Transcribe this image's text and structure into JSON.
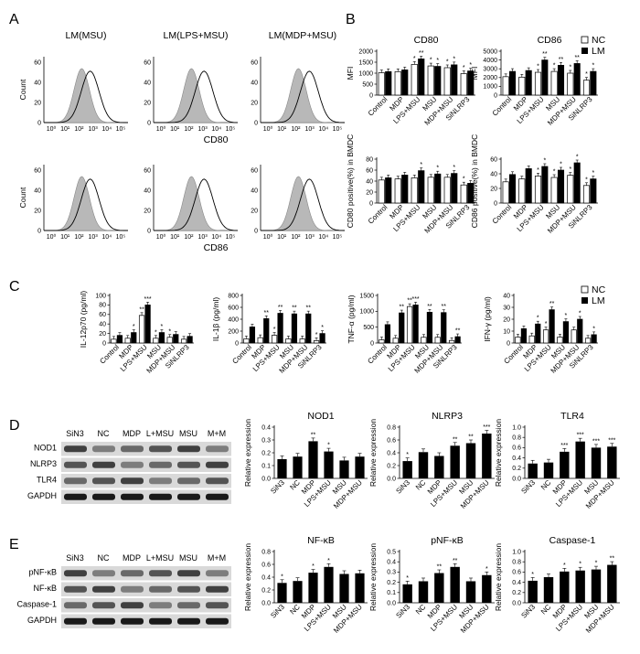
{
  "panels": {
    "A": {
      "letter": "A",
      "rows": [
        {
          "titles": [
            "LM(MSU)",
            "LM(LPS+MSU)",
            "LM(MDP+MSU)"
          ],
          "xlabel": "CD80",
          "ylabel": "Count",
          "yticks": [
            "0",
            "20",
            "40",
            "60"
          ],
          "xticks": [
            "10⁰",
            "10¹",
            "10²",
            "10³",
            "10⁴",
            "10⁵"
          ]
        },
        {
          "titles": [
            "",
            "",
            ""
          ],
          "xlabel": "CD86",
          "ylabel": "Count",
          "yticks": [
            "0",
            "20",
            "40",
            "60"
          ],
          "xticks": [
            "10⁰",
            "10¹",
            "10²",
            "10³",
            "10⁴",
            "10⁵"
          ]
        }
      ]
    },
    "B": {
      "letter": "B"
    },
    "C": {
      "letter": "C"
    },
    "D": {
      "letter": "D",
      "lane_labels": [
        "SiN3",
        "NC",
        "MDP",
        "L+MSU",
        "MSU",
        "M+M"
      ],
      "row_labels": [
        "NOD1",
        "NLRP3",
        "TLR4",
        "GAPDH"
      ]
    },
    "E": {
      "letter": "E",
      "lane_labels": [
        "SiN3",
        "NC",
        "MDP",
        "L+MSU",
        "MSU",
        "M+M"
      ],
      "row_labels": [
        "pNF-κB",
        "NF-κB",
        "Caspase-1",
        "GAPDH"
      ]
    }
  },
  "legend": {
    "nc": "NC",
    "lm": "LM"
  },
  "colors": {
    "nc_fill": "#ffffff",
    "lm_fill": "#000000",
    "histo_fill": "#b8b8b8"
  },
  "chart_data": [
    {
      "id": "b1",
      "type": "bar",
      "title": "CD80",
      "ylabel": "MFI",
      "yticks": [
        "0",
        "500",
        "1000",
        "1500",
        "2000"
      ],
      "ylim": [
        0,
        2000
      ],
      "categories": [
        "Control",
        "MDP",
        "LPS+MSU",
        "MSU",
        "MDP+MSU",
        "SiNLRP3"
      ],
      "series": [
        {
          "name": "NC",
          "values": [
            1020,
            1070,
            1400,
            1330,
            1250,
            980
          ]
        },
        {
          "name": "LM",
          "values": [
            1070,
            1150,
            1650,
            1310,
            1380,
            1100
          ]
        }
      ],
      "annotations": [
        [
          "",
          ""
        ],
        [
          "",
          ""
        ],
        [
          "*",
          "**"
        ],
        [
          "*",
          "*"
        ],
        [
          "*",
          "*"
        ],
        [
          "*",
          "*"
        ]
      ]
    },
    {
      "id": "b2",
      "type": "bar",
      "title": "CD86",
      "ylabel": "MFI",
      "yticks": [
        "0",
        "1000",
        "2000",
        "3000",
        "4000",
        "5000"
      ],
      "ylim": [
        0,
        5000
      ],
      "categories": [
        "Control",
        "MDP",
        "LPS+MSU",
        "MSU",
        "MDP+MSU",
        "SiNLRP3"
      ],
      "series": [
        {
          "name": "NC",
          "values": [
            2100,
            2050,
            2600,
            2700,
            2500,
            1700
          ]
        },
        {
          "name": "LM",
          "values": [
            2700,
            2800,
            4000,
            3400,
            3600,
            2700
          ]
        }
      ],
      "annotations": [
        [
          "",
          ""
        ],
        [
          "",
          ""
        ],
        [
          "*",
          "**"
        ],
        [
          "*",
          "**"
        ],
        [
          "*",
          "**"
        ],
        [
          "*",
          "*"
        ]
      ]
    },
    {
      "id": "b3",
      "type": "bar",
      "title": "",
      "ylabel": "CD80 positive(%) in BMDC",
      "yticks": [
        "0",
        "20",
        "40",
        "60",
        "80"
      ],
      "ylim": [
        0,
        80
      ],
      "categories": [
        "Control",
        "MDP",
        "LPS+MSU",
        "MSU",
        "MDP+MSU",
        "SiNLRP3"
      ],
      "series": [
        {
          "name": "NC",
          "values": [
            42,
            44,
            46,
            47,
            47,
            33
          ]
        },
        {
          "name": "LM",
          "values": [
            46,
            51,
            59,
            53,
            54,
            36
          ]
        }
      ],
      "annotations": [
        [
          "",
          ""
        ],
        [
          "",
          ""
        ],
        [
          "",
          "*"
        ],
        [
          "",
          "*"
        ],
        [
          "",
          "*"
        ],
        [
          "*",
          ""
        ]
      ]
    },
    {
      "id": "b4",
      "type": "bar",
      "title": "",
      "ylabel": "CD86 positive(%) in BMDC",
      "yticks": [
        "0",
        "20",
        "40",
        "60"
      ],
      "ylim": [
        0,
        60
      ],
      "categories": [
        "Control",
        "MDP",
        "LPS+MSU",
        "MSU",
        "MDP+MSU",
        "SiNLRP3"
      ],
      "series": [
        {
          "name": "NC",
          "values": [
            29,
            33,
            37,
            35,
            38,
            24
          ]
        },
        {
          "name": "LM",
          "values": [
            39,
            47,
            50,
            45,
            55,
            33
          ]
        }
      ],
      "annotations": [
        [
          "",
          ""
        ],
        [
          "",
          ""
        ],
        [
          "*",
          "*"
        ],
        [
          "*",
          "*"
        ],
        [
          "*",
          "*"
        ],
        [
          "*",
          "*"
        ]
      ]
    },
    {
      "id": "c1",
      "type": "bar",
      "title": "",
      "ylabel": "IL-12p70 (pg/ml)",
      "yticks": [
        "0",
        "20",
        "40",
        "60",
        "80",
        "100"
      ],
      "ylim": [
        0,
        100
      ],
      "categories": [
        "Control",
        "MDP",
        "LPS+MSU",
        "MSU",
        "MDP+MSU",
        "SiNLRP3"
      ],
      "series": [
        {
          "name": "NC",
          "values": [
            8,
            10,
            58,
            10,
            12,
            8
          ]
        },
        {
          "name": "LM",
          "values": [
            16,
            22,
            80,
            22,
            18,
            14
          ]
        }
      ],
      "annotations": [
        [
          "",
          ""
        ],
        [
          "",
          "*"
        ],
        [
          "**",
          "***"
        ],
        [
          "*",
          "*"
        ],
        [
          "*",
          ""
        ],
        [
          "",
          ""
        ]
      ]
    },
    {
      "id": "c2",
      "type": "bar",
      "title": "",
      "ylabel": "IL-1β (pg/ml)",
      "yticks": [
        "0",
        "200",
        "400",
        "600",
        "800"
      ],
      "ylim": [
        0,
        800
      ],
      "categories": [
        "Control",
        "MDP",
        "LPS+MSU",
        "MSU",
        "MDP+MSU",
        "SiNLRP3"
      ],
      "series": [
        {
          "name": "NC",
          "values": [
            70,
            90,
            130,
            70,
            70,
            40
          ]
        },
        {
          "name": "LM",
          "values": [
            270,
            410,
            500,
            490,
            490,
            160
          ]
        }
      ],
      "annotations": [
        [
          "",
          ""
        ],
        [
          "",
          "**"
        ],
        [
          "*",
          "**"
        ],
        [
          "",
          "**"
        ],
        [
          "",
          "**"
        ],
        [
          "*",
          "*"
        ]
      ]
    },
    {
      "id": "c3",
      "type": "bar",
      "title": "",
      "ylabel": "TNF-α (pg/ml)",
      "yticks": [
        "0",
        "500",
        "1000",
        "1500"
      ],
      "ylim": [
        0,
        1500
      ],
      "categories": [
        "Control",
        "MDP",
        "LPS+MSU",
        "MSU",
        "MDP+MSU",
        "SiNLRP3"
      ],
      "series": [
        {
          "name": "NC",
          "values": [
            100,
            150,
            1150,
            180,
            180,
            80
          ]
        },
        {
          "name": "LM",
          "values": [
            580,
            950,
            1200,
            970,
            960,
            200
          ]
        }
      ],
      "annotations": [
        [
          "",
          ""
        ],
        [
          "",
          "**"
        ],
        [
          "**",
          "***"
        ],
        [
          "",
          "**"
        ],
        [
          "",
          "**"
        ],
        [
          "",
          "**"
        ]
      ]
    },
    {
      "id": "c4",
      "type": "bar",
      "title": "",
      "ylabel": "IFN-γ (pg/ml)",
      "yticks": [
        "0",
        "10",
        "20",
        "30",
        "40"
      ],
      "ylim": [
        0,
        40
      ],
      "categories": [
        "Control",
        "MDP",
        "LPS+MSU",
        "MSU",
        "MDP+MSU",
        "SiNLRP3"
      ],
      "series": [
        {
          "name": "NC",
          "values": [
            5,
            6,
            11,
            5,
            11,
            4
          ]
        },
        {
          "name": "LM",
          "values": [
            12,
            16,
            28,
            18,
            20,
            7
          ]
        }
      ],
      "annotations": [
        [
          "",
          ""
        ],
        [
          "",
          "*"
        ],
        [
          "*",
          "**"
        ],
        [
          "",
          "*"
        ],
        [
          "",
          "*"
        ],
        [
          "",
          "*"
        ]
      ]
    },
    {
      "id": "d1",
      "type": "bar",
      "title": "NOD1",
      "ylabel": "Relative expression",
      "yticks": [
        "0.0",
        "0.1",
        "0.2",
        "0.3",
        "0.4"
      ],
      "ylim": [
        0,
        0.4
      ],
      "categories": [
        "SiN3",
        "NC",
        "MDP",
        "LPS+MSU",
        "MSU",
        "MDP+MSU"
      ],
      "values": [
        0.15,
        0.17,
        0.29,
        0.21,
        0.14,
        0.17
      ],
      "annotations": [
        "",
        "",
        "**",
        "*",
        "",
        ""
      ]
    },
    {
      "id": "d2",
      "type": "bar",
      "title": "NLRP3",
      "ylabel": "Relative expression",
      "yticks": [
        "0.0",
        "0.2",
        "0.4",
        "0.6",
        "0.8"
      ],
      "ylim": [
        0,
        0.8
      ],
      "categories": [
        "SiN3",
        "NC",
        "MDP",
        "LPS+MSU",
        "MSU",
        "MDP+MSU"
      ],
      "values": [
        0.27,
        0.41,
        0.35,
        0.51,
        0.55,
        0.7
      ],
      "annotations": [
        "*",
        "",
        "",
        "**",
        "**",
        "***"
      ]
    },
    {
      "id": "d3",
      "type": "bar",
      "title": "TLR4",
      "ylabel": "Relative expression",
      "yticks": [
        "0.0",
        "0.2",
        "0.4",
        "0.6",
        "0.8",
        "1.0"
      ],
      "ylim": [
        0,
        1.0
      ],
      "categories": [
        "SiN3",
        "NC",
        "MDP",
        "LPS+MSU",
        "MSU",
        "MDP+MSU"
      ],
      "values": [
        0.29,
        0.31,
        0.52,
        0.72,
        0.6,
        0.62
      ],
      "annotations": [
        "",
        "",
        "***",
        "***",
        "***",
        "***"
      ]
    },
    {
      "id": "e1",
      "type": "bar",
      "title": "NF-κB",
      "ylabel": "Relative expression",
      "yticks": [
        "0.0",
        "0.2",
        "0.4",
        "0.6",
        "0.8"
      ],
      "ylim": [
        0,
        0.8
      ],
      "categories": [
        "SiN3",
        "NC",
        "MDP",
        "LPS+MSU",
        "MSU",
        "MDP+MSU"
      ],
      "values": [
        0.31,
        0.34,
        0.47,
        0.56,
        0.45,
        0.46
      ],
      "annotations": [
        "*",
        "",
        "*",
        "*",
        "",
        ""
      ]
    },
    {
      "id": "e2",
      "type": "bar",
      "title": "pNF-κB",
      "ylabel": "Relative expression",
      "yticks": [
        "0.0",
        "0.1",
        "0.2",
        "0.3",
        "0.4",
        "0.5"
      ],
      "ylim": [
        0,
        0.5
      ],
      "categories": [
        "SiN3",
        "NC",
        "MDP",
        "LPS+MSU",
        "MSU",
        "MDP+MSU"
      ],
      "values": [
        0.18,
        0.21,
        0.29,
        0.35,
        0.21,
        0.27
      ],
      "annotations": [
        "*",
        "",
        "**",
        "**",
        "",
        "*"
      ]
    },
    {
      "id": "e3",
      "type": "bar",
      "title": "Caspase-1",
      "ylabel": "Relative expression",
      "yticks": [
        "0.0",
        "0.2",
        "0.4",
        "0.6",
        "0.8",
        "1.0"
      ],
      "ylim": [
        0,
        1.0
      ],
      "categories": [
        "SiN3",
        "NC",
        "MDP",
        "LPS+MSU",
        "MSU",
        "MDP+MSU"
      ],
      "values": [
        0.43,
        0.5,
        0.61,
        0.63,
        0.65,
        0.74
      ],
      "annotations": [
        "*",
        "",
        "*",
        "*",
        "*",
        "**"
      ]
    }
  ]
}
